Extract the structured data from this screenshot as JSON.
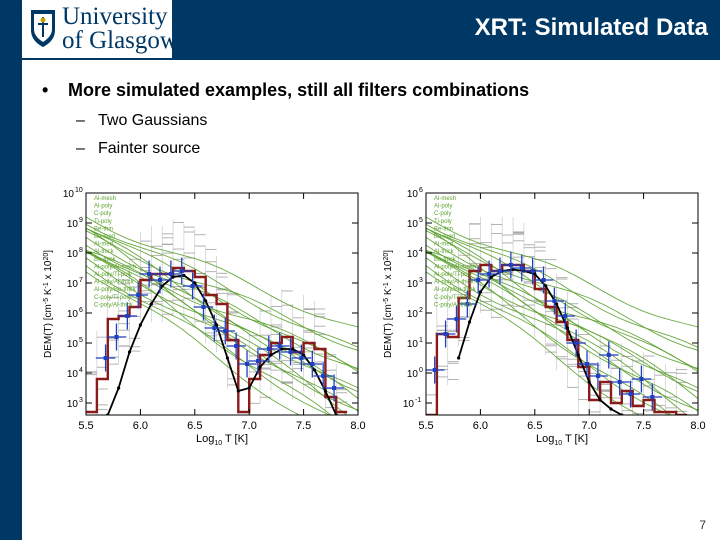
{
  "header": {
    "title": "XRT: Simulated Data",
    "logo_line1": "University",
    "logo_line2": "of Glasgow"
  },
  "content": {
    "bullet": "More simulated examples, still all filters combinations",
    "bullet_marker": "•",
    "dash": "–",
    "sub_bullets": [
      "Two Gaussians",
      "Fainter source"
    ]
  },
  "slide_number": "7",
  "colors": {
    "brand": "#003865",
    "true_dem": "#000000",
    "em_loci": "#5aa02c",
    "regularized": "#1f3fbf",
    "mc_solution": "#8b1a1a",
    "mc_spread": "#9a9a9a"
  },
  "chart_data": [
    {
      "type": "line",
      "name": "left",
      "title": "",
      "xlabel": "Log10 T [K]",
      "ylabel": "DEM(T) [cm^-5 K^-1 x 10^20]",
      "xlabel_parts": [
        "Log",
        "10",
        " T [K]"
      ],
      "ylabel_text": "DEM(T) [cm",
      "ylabel_sup1": "-5",
      "ylabel_mid": " K",
      "ylabel_sup2": "-1",
      "ylabel_end": " x 10",
      "ylabel_sup3": "20",
      "ylabel_close": "]",
      "xlim": [
        5.5,
        8.0
      ],
      "ylim_log10": [
        2.6,
        10
      ],
      "x_ticks": [
        "5.5",
        "6.0",
        "6.5",
        "7.0",
        "7.5",
        "8.0"
      ],
      "y_tick_exponents": [
        "3",
        "4",
        "5",
        "6",
        "7",
        "8",
        "9",
        "10"
      ],
      "legend": [
        "Al-mesh",
        "Al-poly",
        "C-poly",
        "Ti-poly",
        "Be-thin",
        "Be-med",
        "Al-med",
        "Al-thick",
        "Be-thick",
        "Al-poly/Al-mesh",
        "Al-poly/Ti-poly",
        "Al-poly/Al-thick",
        "Al-poly/Be-thick",
        "C-poly/Ti-poly",
        "C-poly/Al-thick"
      ],
      "series": [
        {
          "name": "True DEM",
          "x": [
            5.7,
            5.8,
            5.9,
            6.0,
            6.1,
            6.2,
            6.3,
            6.4,
            6.5,
            6.6,
            6.7,
            6.8,
            6.9,
            7.0,
            7.1,
            7.2,
            7.3,
            7.4,
            7.5,
            7.6,
            7.7,
            7.8
          ],
          "log10_values": [
            2.6,
            3.5,
            4.7,
            5.6,
            6.3,
            6.9,
            7.2,
            7.25,
            7.0,
            6.4,
            5.6,
            4.5,
            3.4,
            3.5,
            4.2,
            4.6,
            4.8,
            4.8,
            4.6,
            4.1,
            3.4,
            2.6
          ]
        },
        {
          "name": "Regularized DEM",
          "x": [
            5.68,
            5.78,
            5.88,
            5.98,
            6.08,
            6.18,
            6.28,
            6.38,
            6.48,
            6.58,
            6.68,
            6.78,
            6.88,
            6.98,
            7.08,
            7.18,
            7.28,
            7.38,
            7.48,
            7.58,
            7.68,
            7.78
          ],
          "log10_values": [
            4.5,
            5.2,
            5.9,
            6.6,
            7.3,
            7.1,
            7.3,
            7.4,
            6.9,
            6.2,
            5.5,
            5.4,
            4.9,
            4.3,
            4.4,
            4.8,
            4.9,
            4.7,
            4.5,
            4.3,
            3.9,
            3.5
          ]
        },
        {
          "name": "MC solution",
          "x": [
            5.55,
            5.65,
            5.75,
            5.85,
            5.95,
            6.05,
            6.15,
            6.25,
            6.35,
            6.45,
            6.55,
            6.65,
            6.75,
            6.85,
            6.95,
            7.05,
            7.15,
            7.25,
            7.35,
            7.45,
            7.55,
            7.65,
            7.75,
            7.85
          ],
          "log10_values": [
            2.7,
            3.8,
            5.8,
            5.9,
            6.2,
            7.1,
            7.3,
            7.3,
            7.5,
            7.4,
            7.2,
            6.6,
            6.3,
            5.1,
            2.7,
            3.8,
            4.6,
            5.0,
            5.2,
            4.7,
            5.0,
            4.8,
            3.2,
            2.7
          ]
        }
      ]
    },
    {
      "type": "line",
      "name": "right",
      "title": "",
      "xlabel": "Log10 T [K]",
      "ylabel": "DEM(T) [cm^-5 K^-1 x 10^20]",
      "xlabel_parts": [
        "Log",
        "10",
        " T [K]"
      ],
      "ylabel_text": "DEM(T) [cm",
      "ylabel_sup1": "-5",
      "ylabel_mid": " K",
      "ylabel_sup2": "-1",
      "ylabel_end": " x 10",
      "ylabel_sup3": "20",
      "ylabel_close": "]",
      "xlim": [
        5.5,
        8.0
      ],
      "ylim_log10": [
        -1.4,
        6
      ],
      "x_ticks": [
        "5.5",
        "6.0",
        "6.5",
        "7.0",
        "7.5",
        "8.0"
      ],
      "y_tick_exponents": [
        "-1",
        "0",
        "1",
        "2",
        "3",
        "4",
        "5",
        "6"
      ],
      "legend": [
        "Al-mesh",
        "Al-poly",
        "C-poly",
        "Ti-poly",
        "Be-thin",
        "Be-med",
        "Al-med",
        "Al-thick",
        "Be-thick",
        "Al-poly/Al-mesh",
        "Al-poly/Ti-poly",
        "Al-poly/Al-thick",
        "Al-poly/Be-thick",
        "C-poly/Ti-poly",
        "C-poly/Al-thick"
      ],
      "series": [
        {
          "name": "True DEM",
          "x": [
            5.8,
            5.9,
            6.0,
            6.1,
            6.2,
            6.3,
            6.4,
            6.5,
            6.6,
            6.7,
            6.8,
            6.9,
            7.0,
            7.1,
            7.2,
            7.3
          ],
          "log10_values": [
            0.5,
            1.7,
            2.7,
            3.2,
            3.4,
            3.45,
            3.4,
            3.3,
            2.9,
            2.3,
            1.5,
            0.6,
            -0.3,
            -0.9,
            -1.2,
            -1.4
          ]
        },
        {
          "name": "Regularized DEM",
          "x": [
            5.58,
            5.68,
            5.78,
            5.88,
            5.98,
            6.08,
            6.18,
            6.28,
            6.38,
            6.48,
            6.58,
            6.68,
            6.78,
            6.88,
            6.98,
            7.08,
            7.18,
            7.28,
            7.38,
            7.48,
            7.58
          ],
          "log10_values": [
            0.1,
            1.3,
            1.8,
            2.3,
            3.1,
            3.3,
            3.4,
            3.6,
            3.5,
            3.4,
            3.1,
            2.4,
            1.9,
            1.0,
            0.3,
            -0.1,
            0.6,
            -0.3,
            -0.7,
            -0.2,
            -0.8
          ]
        },
        {
          "name": "MC solution",
          "x": [
            5.55,
            5.65,
            5.75,
            5.85,
            5.95,
            6.05,
            6.15,
            6.25,
            6.35,
            6.45,
            6.55,
            6.65,
            6.75,
            6.85,
            6.95,
            7.05,
            7.15,
            7.25,
            7.35,
            7.45,
            7.55,
            7.65,
            7.75,
            7.85
          ],
          "log10_values": [
            -1.4,
            1.3,
            1.2,
            2.5,
            3.4,
            3.6,
            3.4,
            3.6,
            3.6,
            3.4,
            2.8,
            2.2,
            1.7,
            1.1,
            0.2,
            -0.9,
            -0.3,
            -1.0,
            -0.6,
            -1.1,
            -0.9,
            -1.3,
            -1.3,
            -1.4
          ]
        }
      ]
    }
  ]
}
